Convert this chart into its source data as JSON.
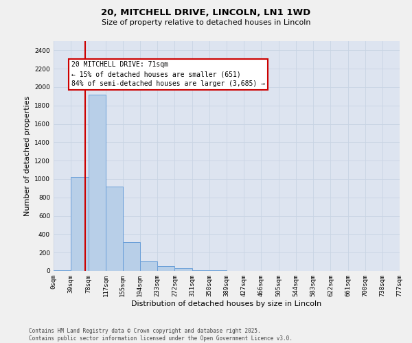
{
  "title_line1": "20, MITCHELL DRIVE, LINCOLN, LN1 1WD",
  "title_line2": "Size of property relative to detached houses in Lincoln",
  "xlabel": "Distribution of detached houses by size in Lincoln",
  "ylabel": "Number of detached properties",
  "bin_edges": [
    0,
    39,
    78,
    117,
    155,
    194,
    233,
    272,
    311,
    350,
    389,
    427,
    466,
    505,
    544,
    583,
    622,
    661,
    700,
    738,
    777
  ],
  "bar_heights": [
    10,
    1020,
    1920,
    920,
    310,
    105,
    55,
    30,
    10,
    5,
    2,
    1,
    1,
    0,
    0,
    0,
    0,
    0,
    0,
    0
  ],
  "bar_color": "#b8cfe8",
  "bar_edge_color": "#6a9fd8",
  "property_size": 71,
  "red_line_color": "#cc0000",
  "annotation_line1": "20 MITCHELL DRIVE: 71sqm",
  "annotation_line2": "← 15% of detached houses are smaller (651)",
  "annotation_line3": "84% of semi-detached houses are larger (3,685) →",
  "annotation_box_facecolor": "#ffffff",
  "annotation_box_edgecolor": "#cc0000",
  "ylim": [
    0,
    2500
  ],
  "yticks": [
    0,
    200,
    400,
    600,
    800,
    1000,
    1200,
    1400,
    1600,
    1800,
    2000,
    2200,
    2400
  ],
  "grid_color": "#c8d4e4",
  "plot_bg_color": "#dde4f0",
  "fig_bg_color": "#f0f0f0",
  "footer_text": "Contains HM Land Registry data © Crown copyright and database right 2025.\nContains public sector information licensed under the Open Government Licence v3.0.",
  "title_fontsize": 9.5,
  "subtitle_fontsize": 8,
  "tick_fontsize": 6.5,
  "axis_label_fontsize": 8,
  "annotation_fontsize": 7,
  "footer_fontsize": 5.5
}
